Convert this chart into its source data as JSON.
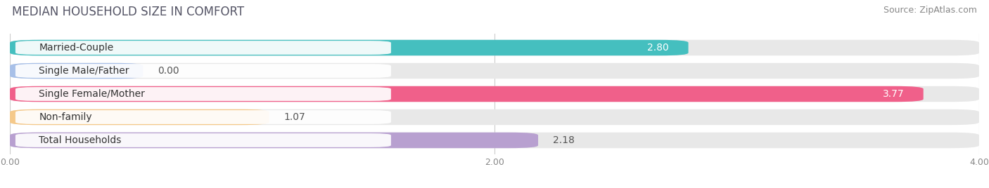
{
  "title": "MEDIAN HOUSEHOLD SIZE IN COMFORT",
  "source": "Source: ZipAtlas.com",
  "categories": [
    "Married-Couple",
    "Single Male/Father",
    "Single Female/Mother",
    "Non-family",
    "Total Households"
  ],
  "values": [
    2.8,
    0.0,
    3.77,
    1.07,
    2.18
  ],
  "bar_colors": [
    "#45BFBF",
    "#A8C0E8",
    "#F0608A",
    "#F5C98A",
    "#B8A0D0"
  ],
  "bar_bg_color": "#E8E8E8",
  "xlim_max": 4.0,
  "xticks": [
    0.0,
    2.0,
    4.0
  ],
  "xtick_labels": [
    "0.00",
    "2.00",
    "4.00"
  ],
  "title_fontsize": 12,
  "source_fontsize": 9,
  "label_fontsize": 10,
  "value_fontsize": 10,
  "background_color": "#FFFFFF",
  "bar_height": 0.68,
  "inside_label_threshold": 2.5
}
